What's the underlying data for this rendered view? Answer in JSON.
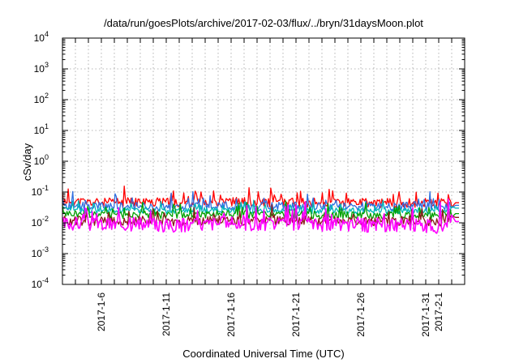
{
  "chart_data": {
    "type": "line",
    "title": "/data/run/goesPlots/archive/2017-02-03/flux/../bryn/31daysMoon.plot",
    "xlabel": "Coordinated Universal Time (UTC)",
    "ylabel": "cSv/day",
    "y_scale": "log",
    "ylim": [
      0.0001,
      10000
    ],
    "xlim": [
      "2017-01-03",
      "2017-02-03"
    ],
    "grid": true,
    "legend": "none",
    "y_ticks": [
      {
        "base": "10",
        "exp": "-4",
        "value": 0.0001
      },
      {
        "base": "10",
        "exp": "-3",
        "value": 0.001
      },
      {
        "base": "10",
        "exp": "-2",
        "value": 0.01
      },
      {
        "base": "10",
        "exp": "-1",
        "value": 0.1
      },
      {
        "base": "10",
        "exp": "0",
        "value": 1
      },
      {
        "base": "10",
        "exp": "1",
        "value": 10
      },
      {
        "base": "10",
        "exp": "2",
        "value": 100
      },
      {
        "base": "10",
        "exp": "3",
        "value": 1000
      },
      {
        "base": "10",
        "exp": "4",
        "value": 10000
      }
    ],
    "x_ticks": [
      {
        "label": "2017-1-6",
        "date": "2017-01-06"
      },
      {
        "label": "2017-1-11",
        "date": "2017-01-11"
      },
      {
        "label": "2017-1-16",
        "date": "2017-01-16"
      },
      {
        "label": "2017-1-21",
        "date": "2017-01-21"
      },
      {
        "label": "2017-1-26",
        "date": "2017-01-26"
      },
      {
        "label": "2017-1-31",
        "date": "2017-01-31"
      },
      {
        "label": "2017-2-1",
        "date": "2017-02-01"
      }
    ],
    "series": [
      {
        "color": "#ff0000",
        "base": 0.045,
        "spread": 0.3,
        "seed": 11,
        "x": [
          "2017-01-03",
          "2017-01-06",
          "2017-01-09",
          "2017-01-12",
          "2017-01-15",
          "2017-01-18",
          "2017-01-21",
          "2017-01-24",
          "2017-01-27",
          "2017-01-30",
          "2017-02-01",
          "2017-02-02",
          "2017-02-03"
        ],
        "y": [
          0.05,
          0.045,
          0.048,
          0.044,
          0.05,
          0.047,
          0.045,
          0.046,
          0.044,
          0.045,
          0.043,
          0.045,
          0.045
        ]
      },
      {
        "color": "#2f6fe0",
        "base": 0.035,
        "spread": 0.28,
        "seed": 23,
        "x": [
          "2017-01-03",
          "2017-01-06",
          "2017-01-09",
          "2017-01-12",
          "2017-01-15",
          "2017-01-18",
          "2017-01-21",
          "2017-01-24",
          "2017-01-27",
          "2017-01-30",
          "2017-02-01",
          "2017-02-02",
          "2017-02-03"
        ],
        "y": [
          0.036,
          0.034,
          0.035,
          0.033,
          0.036,
          0.034,
          0.035,
          0.034,
          0.033,
          0.035,
          0.033,
          0.037,
          0.037
        ]
      },
      {
        "color": "#00b8b8",
        "base": 0.025,
        "spread": 0.2,
        "seed": 37,
        "x": [
          "2017-01-03",
          "2017-01-06",
          "2017-01-09",
          "2017-01-12",
          "2017-01-15",
          "2017-01-18",
          "2017-01-21",
          "2017-01-24",
          "2017-01-27",
          "2017-01-30",
          "2017-02-01",
          "2017-02-02",
          "2017-02-03"
        ],
        "y": [
          0.026,
          0.025,
          0.026,
          0.024,
          0.026,
          0.025,
          0.025,
          0.025,
          0.024,
          0.025,
          0.024,
          0.03,
          0.03
        ]
      },
      {
        "color": "#00a000",
        "base": 0.018,
        "spread": 0.25,
        "seed": 41,
        "x": [
          "2017-01-03",
          "2017-01-06",
          "2017-01-09",
          "2017-01-12",
          "2017-01-15",
          "2017-01-18",
          "2017-01-21",
          "2017-01-24",
          "2017-01-27",
          "2017-01-30",
          "2017-02-01",
          "2017-02-02",
          "2017-02-03"
        ],
        "y": [
          0.02,
          0.018,
          0.019,
          0.017,
          0.02,
          0.018,
          0.018,
          0.018,
          0.017,
          0.018,
          0.016,
          0.02,
          0.02
        ]
      },
      {
        "color": "#8b1a1a",
        "base": 0.012,
        "spread": 0.3,
        "seed": 53,
        "x": [
          "2017-01-03",
          "2017-01-06",
          "2017-01-09",
          "2017-01-12",
          "2017-01-15",
          "2017-01-18",
          "2017-01-21",
          "2017-01-24",
          "2017-01-27",
          "2017-01-30",
          "2017-02-01",
          "2017-02-02",
          "2017-02-03"
        ],
        "y": [
          0.012,
          0.011,
          0.012,
          0.011,
          0.012,
          0.011,
          0.012,
          0.011,
          0.011,
          0.012,
          0.01,
          0.015,
          0.015
        ]
      },
      {
        "color": "#ff00ff",
        "base": 0.009,
        "spread": 0.45,
        "seed": 67,
        "x": [
          "2017-01-03",
          "2017-01-06",
          "2017-01-09",
          "2017-01-12",
          "2017-01-15",
          "2017-01-18",
          "2017-01-21",
          "2017-01-24",
          "2017-01-27",
          "2017-01-30",
          "2017-02-01",
          "2017-02-02",
          "2017-02-03"
        ],
        "y": [
          0.01,
          0.009,
          0.009,
          0.008,
          0.01,
          0.009,
          0.009,
          0.009,
          0.008,
          0.009,
          0.007,
          0.011,
          0.011
        ]
      }
    ]
  }
}
